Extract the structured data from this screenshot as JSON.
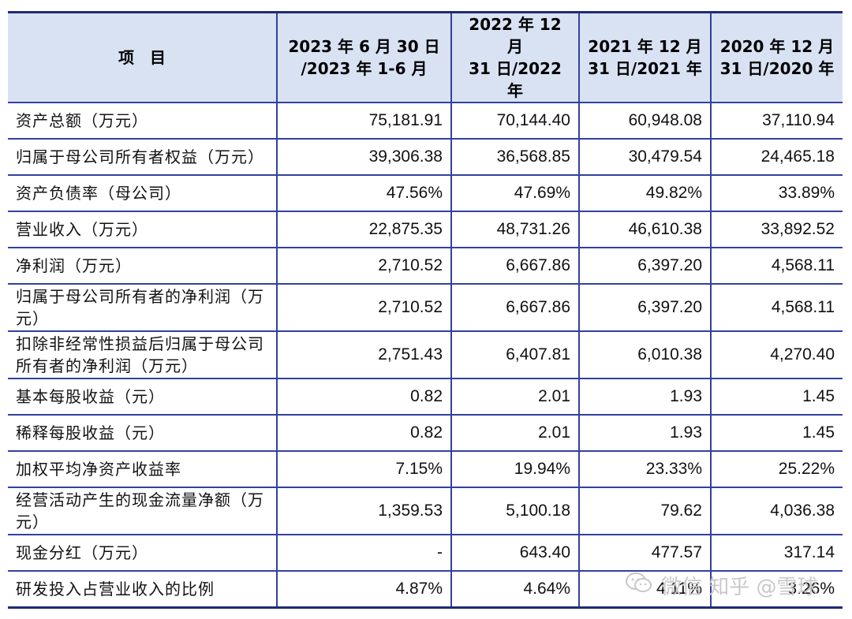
{
  "table": {
    "headers": [
      [
        "项　目"
      ],
      [
        "2023 年 6 月 30 日",
        "/2023 年 1-6 月"
      ],
      [
        "2022 年 12 月",
        "31 日/2022 年"
      ],
      [
        "2021 年 12 月",
        "31 日/2021 年"
      ],
      [
        "2020 年 12 月",
        "31 日/2020 年"
      ]
    ],
    "rows": [
      {
        "label": "资产总额（万元）",
        "values": [
          "75,181.91",
          "70,144.40",
          "60,948.08",
          "37,110.94"
        ]
      },
      {
        "label": "归属于母公司所有者权益（万元）",
        "values": [
          "39,306.38",
          "36,568.85",
          "30,479.54",
          "24,465.18"
        ]
      },
      {
        "label": "资产负债率（母公司）",
        "values": [
          "47.56%",
          "47.69%",
          "49.82%",
          "33.89%"
        ]
      },
      {
        "label": "营业收入（万元）",
        "values": [
          "22,875.35",
          "48,731.26",
          "46,610.38",
          "33,892.52"
        ]
      },
      {
        "label": "净利润（万元）",
        "values": [
          "2,710.52",
          "6,667.86",
          "6,397.20",
          "4,568.11"
        ]
      },
      {
        "label": "归属于母公司所有者的净利润（万元）",
        "values": [
          "2,710.52",
          "6,667.86",
          "6,397.20",
          "4,568.11"
        ]
      },
      {
        "label": "扣除非经常性损益后归属于母公司所有者的净利润（万元）",
        "values": [
          "2,751.43",
          "6,407.81",
          "6,010.38",
          "4,270.40"
        ]
      },
      {
        "label": "基本每股收益（元）",
        "values": [
          "0.82",
          "2.01",
          "1.93",
          "1.45"
        ]
      },
      {
        "label": "稀释每股收益（元）",
        "values": [
          "0.82",
          "2.01",
          "1.93",
          "1.45"
        ]
      },
      {
        "label": "加权平均净资产收益率",
        "values": [
          "7.15%",
          "19.94%",
          "23.33%",
          "25.22%"
        ]
      },
      {
        "label": "经营活动产生的现金流量净额（万元）",
        "values": [
          "1,359.53",
          "5,100.18",
          "79.62",
          "4,036.38"
        ]
      },
      {
        "label": "现金分红（万元）",
        "values": [
          "-",
          "643.40",
          "477.57",
          "317.14"
        ]
      },
      {
        "label": "研发投入占营业收入的比例",
        "values": [
          "4.87%",
          "4.64%",
          "4.11%",
          "3.26%"
        ]
      }
    ]
  },
  "watermark": {
    "text": "微信 知乎 @雪球",
    "icon": "wechat-icon"
  },
  "colors": {
    "header_bg": "#d9e2f3",
    "border": "#3340a0",
    "watermark": "#c8c8c8"
  }
}
